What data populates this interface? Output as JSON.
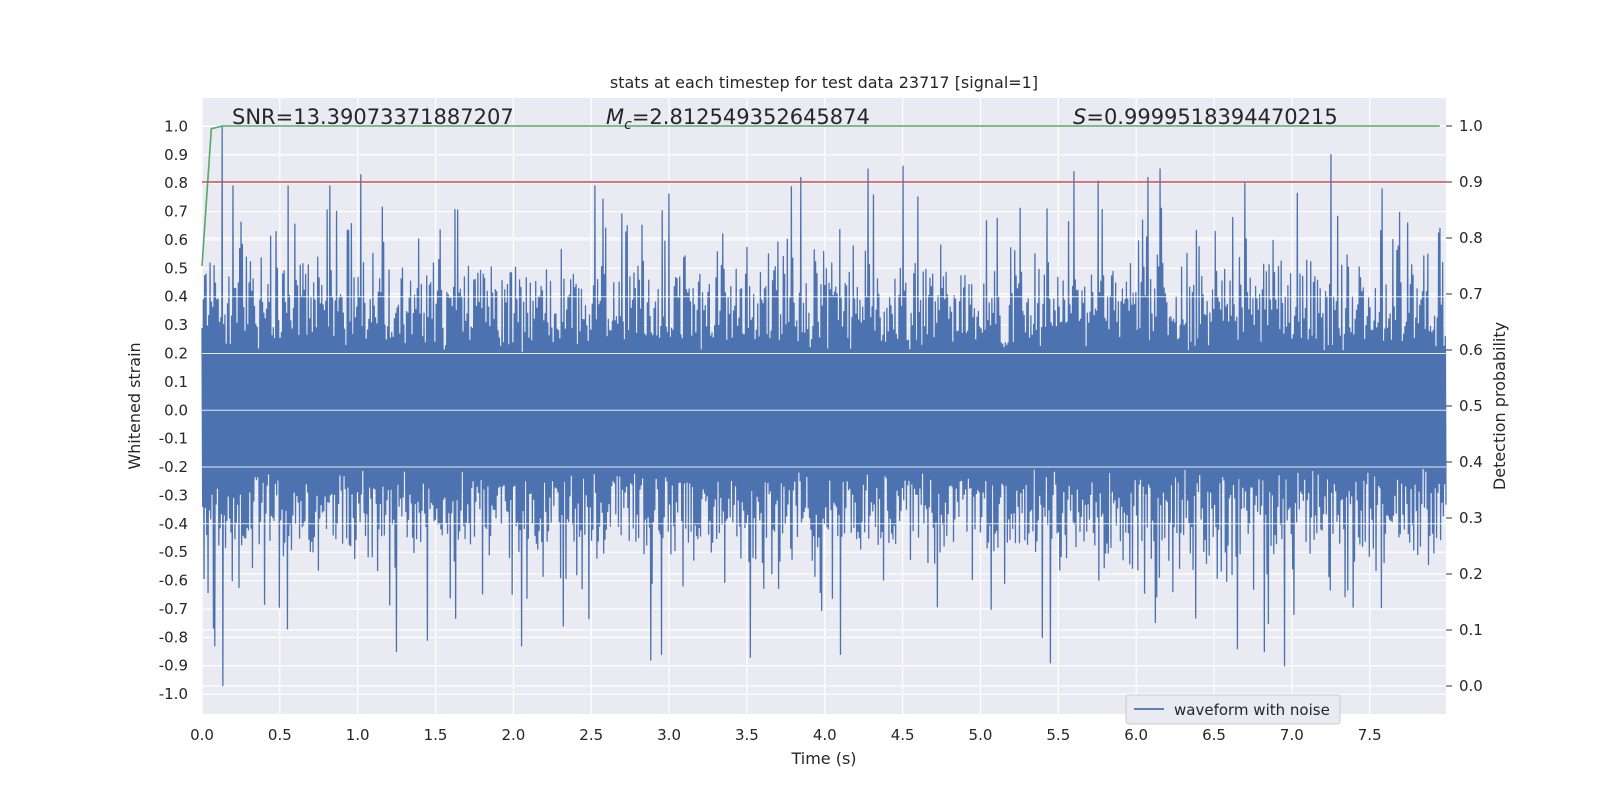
{
  "chart_data": {
    "type": "line",
    "title": "stats at each timestep for test data 23717 [signal=1]",
    "xlabel": "Time (s)",
    "ylabel": "Whitened strain",
    "ylabel_right": "Detection probability",
    "xlim": [
      0.0,
      7.99
    ],
    "ylim": [
      -1.07,
      1.1
    ],
    "ylim_right": [
      -0.05,
      1.05
    ],
    "x_ticks": [
      "0.0",
      "0.5",
      "1.0",
      "1.5",
      "2.0",
      "2.5",
      "3.0",
      "3.5",
      "4.0",
      "4.5",
      "5.0",
      "5.5",
      "6.0",
      "6.5",
      "7.0",
      "7.5"
    ],
    "y_ticks": [
      "1.0",
      "0.9",
      "0.8",
      "0.7",
      "0.6",
      "0.5",
      "0.4",
      "0.3",
      "0.2",
      "0.1",
      "0.0",
      "-0.1",
      "-0.2",
      "-0.3",
      "-0.4",
      "-0.5",
      "-0.6",
      "-0.7",
      "-0.8",
      "-0.9",
      "-1.0"
    ],
    "y_ticks_right": [
      "1.0",
      "0.9",
      "0.8",
      "0.7",
      "0.6",
      "0.5",
      "0.4",
      "0.3",
      "0.2",
      "0.1",
      "0.0"
    ],
    "annotations": {
      "snr": "SNR=13.39073371887207",
      "mc_symbol": "M",
      "mc_sub": "c",
      "mc_value": "=2.812549352645874",
      "s_symbol": "S",
      "s_value": "=0.9999518394470215"
    },
    "legend": {
      "placement": "lower-right",
      "entries": [
        "waveform with noise"
      ]
    },
    "grid": true,
    "colors": {
      "waveform": "#4c72b0",
      "probability": "#55a868",
      "threshold": "#c44e52",
      "axes_bg": "#eaeaf2",
      "grid": "#ffffff"
    },
    "series": [
      {
        "name": "waveform with noise",
        "axis": "left",
        "description_free": true,
        "x_range": [
          0.0,
          7.99
        ],
        "typical_band": [
          -0.38,
          0.4
        ],
        "peaks_positive": [
          [
            0.13,
            1.0
          ],
          [
            0.2,
            0.79
          ],
          [
            0.55,
            0.79
          ],
          [
            0.82,
            0.79
          ],
          [
            2.52,
            0.79
          ],
          [
            3.85,
            0.82
          ],
          [
            4.28,
            0.85
          ],
          [
            4.5,
            0.86
          ],
          [
            5.6,
            0.84
          ],
          [
            6.08,
            0.82
          ],
          [
            6.15,
            0.85
          ],
          [
            6.7,
            0.8
          ],
          [
            7.25,
            0.9
          ],
          [
            7.58,
            0.78
          ]
        ],
        "peaks_negative": [
          [
            0.13,
            -0.97
          ],
          [
            0.08,
            -0.83
          ],
          [
            0.55,
            -0.77
          ],
          [
            1.25,
            -0.85
          ],
          [
            1.45,
            -0.81
          ],
          [
            2.05,
            -0.83
          ],
          [
            2.88,
            -0.88
          ],
          [
            2.95,
            -0.86
          ],
          [
            3.52,
            -0.87
          ],
          [
            4.1,
            -0.86
          ],
          [
            5.4,
            -0.8
          ],
          [
            5.45,
            -0.89
          ],
          [
            6.65,
            -0.84
          ],
          [
            6.82,
            -0.85
          ],
          [
            6.95,
            -0.9
          ]
        ]
      },
      {
        "name": "",
        "axis": "right",
        "x": [
          0.0,
          0.06,
          0.13,
          7.95
        ],
        "y": [
          0.75,
          0.995,
          1.0,
          1.0
        ]
      },
      {
        "name": "",
        "axis": "right",
        "x": [
          0.0,
          7.99
        ],
        "y": [
          0.9,
          0.9
        ]
      }
    ]
  }
}
